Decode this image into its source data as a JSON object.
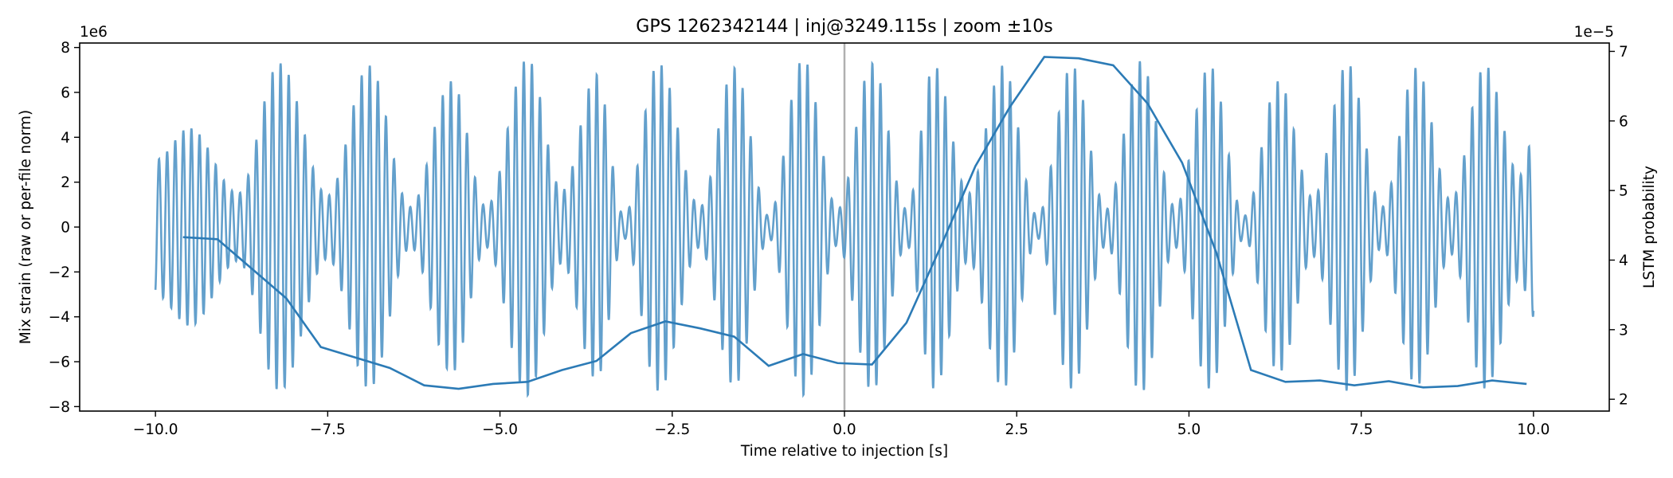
{
  "chart_data": {
    "type": "line",
    "title": "GPS 1262342144 | inj@3249.115s | zoom ±10s",
    "xlabel": "Time relative to injection [s]",
    "ylabel_left": "Mix strain (raw or per-file norm)",
    "ylabel_right": "LSTM probability",
    "xlim": [
      -11.1,
      11.1
    ],
    "ylim_left": [
      -8.2,
      8.2
    ],
    "ylim_right": [
      1.83,
      7.12
    ],
    "y_left_offset": "1e6",
    "y_right_offset": "1e−5",
    "x_ticks": [
      -10,
      -7.5,
      -5,
      -2.5,
      0,
      2.5,
      5,
      7.5,
      10
    ],
    "x_tick_labels": [
      "−10.0",
      "−7.5",
      "−5.0",
      "−2.5",
      "0.0",
      "2.5",
      "5.0",
      "7.5",
      "10.0"
    ],
    "y_left_ticks": [
      -8,
      -6,
      -4,
      -2,
      0,
      2,
      4,
      6,
      8
    ],
    "y_left_tick_labels": [
      "−8",
      "−6",
      "−4",
      "−2",
      "0",
      "2",
      "4",
      "6",
      "8"
    ],
    "y_right_ticks": [
      2,
      3,
      4,
      5,
      6,
      7
    ],
    "y_right_tick_labels": [
      "2",
      "3",
      "4",
      "5",
      "6",
      "7"
    ],
    "injection_marker_x": 0,
    "series": [
      {
        "axis": "left",
        "color": "#5b9bc9",
        "envelope_x": [
          -10,
          -9.5,
          -8.8,
          -8.2,
          -7.5,
          -6.9,
          -6.3,
          -5.7,
          -5.2,
          -4.6,
          -4.1,
          -3.6,
          -3.2,
          -2.7,
          -2.1,
          -1.6,
          -1.1,
          -0.6,
          -0.1,
          0.4,
          0.9,
          1.3,
          1.8,
          2.3,
          2.8,
          3.3,
          3.8,
          4.3,
          4.8,
          5.3,
          5.8,
          6.3,
          6.8,
          7.3,
          7.8,
          8.3,
          8.8,
          9.3,
          9.8,
          10
        ],
        "envelope_y": [
          3.0,
          4.4,
          1.5,
          7.3,
          1.4,
          7.2,
          0.9,
          6.5,
          0.9,
          7.5,
          1.6,
          6.8,
          0.5,
          7.3,
          0.9,
          7.1,
          0.5,
          7.5,
          0.8,
          7.3,
          0.8,
          7.2,
          1.5,
          7.2,
          0.5,
          7.2,
          0.8,
          7.4,
          0.9,
          7.2,
          0.5,
          6.5,
          1.3,
          7.3,
          0.9,
          7.1,
          1.2,
          7.2,
          2.3,
          4.0
        ],
        "carrier_hz": 8.5
      },
      {
        "axis": "right",
        "color": "#2c7bb6",
        "x": [
          -9.6,
          -9.1,
          -8.1,
          -7.6,
          -6.6,
          -6.1,
          -5.6,
          -5.1,
          -4.6,
          -4.1,
          -3.6,
          -3.1,
          -2.6,
          -2.1,
          -1.6,
          -1.1,
          -0.6,
          -0.1,
          0.4,
          0.9,
          1.4,
          1.9,
          2.4,
          2.9,
          3.4,
          3.9,
          4.4,
          4.9,
          5.4,
          5.9,
          6.4,
          6.9,
          7.4,
          7.9,
          8.4,
          8.9,
          9.4,
          9.9
        ],
        "y": [
          4.33,
          4.3,
          3.45,
          2.75,
          2.45,
          2.2,
          2.15,
          2.22,
          2.25,
          2.42,
          2.55,
          2.95,
          3.12,
          3.02,
          2.9,
          2.48,
          2.65,
          2.52,
          2.5,
          3.1,
          4.2,
          5.35,
          6.2,
          6.92,
          6.9,
          6.8,
          6.25,
          5.4,
          4.1,
          2.42,
          2.25,
          2.27,
          2.2,
          2.26,
          2.17,
          2.19,
          2.27,
          2.22
        ]
      }
    ]
  }
}
